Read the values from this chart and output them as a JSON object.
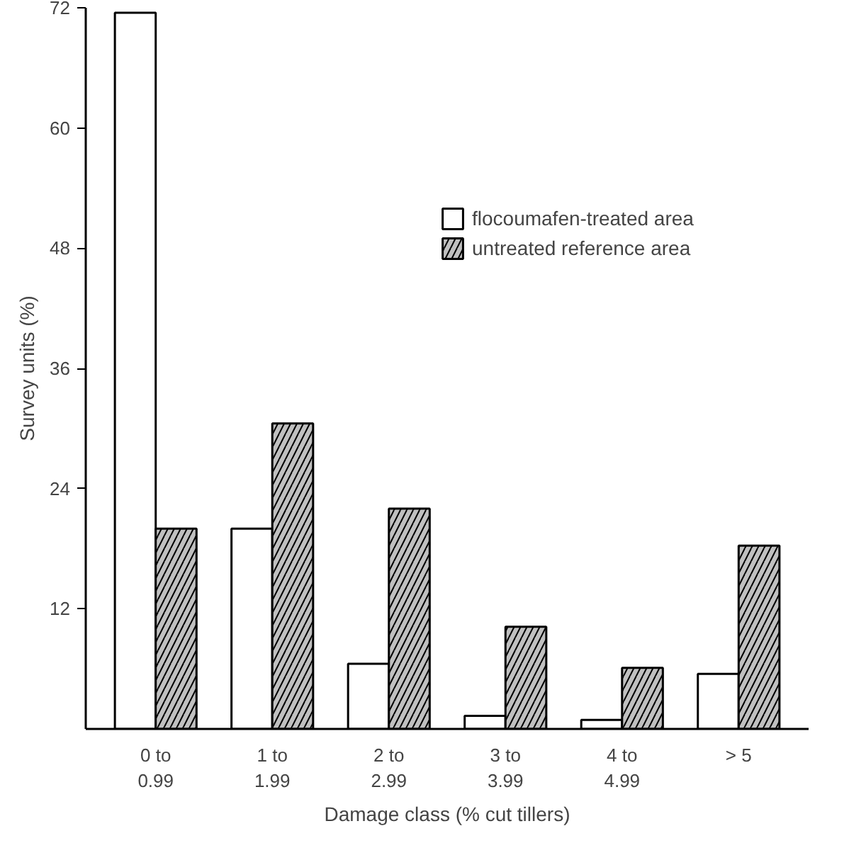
{
  "chart_data": {
    "type": "bar",
    "xlabel": "Damage class (% cut tillers)",
    "ylabel": "Survey units (%)",
    "categories": [
      "0 to\n0.99",
      "1 to\n1.99",
      "2 to\n2.99",
      "3 to\n3.99",
      "4 to\n4.99",
      "> 5"
    ],
    "series": [
      {
        "name": "flocoumafen-treated area",
        "color": "#ffffff",
        "values": [
          71.5,
          20,
          6.5,
          1.3,
          0.9,
          5.5
        ]
      },
      {
        "name": "untreated reference area",
        "color": "#c0c0c0",
        "values": [
          20,
          30.5,
          22,
          10.2,
          6.1,
          18.3
        ]
      }
    ],
    "ylim": [
      0,
      72
    ],
    "yticks": [
      12,
      24,
      36,
      48,
      60,
      72
    ],
    "grid": false,
    "legend": "top right"
  }
}
